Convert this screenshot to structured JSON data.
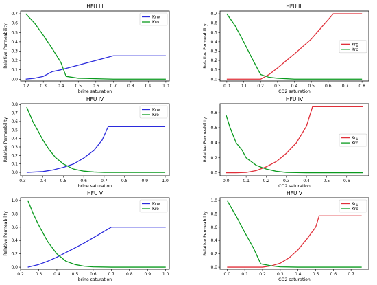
{
  "colors": {
    "blue": "#2b2bdc",
    "green": "#0a9a1e",
    "red": "#e0303a"
  },
  "chart_data": [
    {
      "type": "line",
      "title": "HFU III",
      "xlabel": "brine saturation",
      "ylabel": "Relative Permeability",
      "xlim": [
        0.17,
        1.02
      ],
      "ylim": [
        -0.02,
        0.73
      ],
      "xticks": [
        0.2,
        0.3,
        0.4,
        0.5,
        0.6,
        0.7,
        0.8,
        0.9,
        1.0
      ],
      "xtick_labels": [
        "0.2",
        "0.3",
        "0.4",
        "0.5",
        "0.6",
        "0.7",
        "0.8",
        "0.9",
        "1.0"
      ],
      "yticks": [
        0.0,
        0.1,
        0.2,
        0.3,
        0.4,
        0.5,
        0.6,
        0.7
      ],
      "ytick_labels": [
        "0.0",
        "0.1",
        "0.2",
        "0.3",
        "0.4",
        "0.5",
        "0.6",
        "0.7"
      ],
      "legend": "top-right",
      "series": [
        {
          "name": "Krw",
          "color": "#2b2bdc",
          "points": [
            [
              0.2,
              0.0
            ],
            [
              0.25,
              0.01
            ],
            [
              0.3,
              0.03
            ],
            [
              0.35,
              0.08
            ],
            [
              0.4,
              0.1
            ],
            [
              0.5,
              0.15
            ],
            [
              0.6,
              0.2
            ],
            [
              0.7,
              0.25
            ],
            [
              0.8,
              0.25
            ],
            [
              0.9,
              0.25
            ],
            [
              1.0,
              0.25
            ]
          ]
        },
        {
          "name": "Kro",
          "color": "#0a9a1e",
          "points": [
            [
              0.2,
              0.7
            ],
            [
              0.25,
              0.6
            ],
            [
              0.3,
              0.47
            ],
            [
              0.35,
              0.33
            ],
            [
              0.4,
              0.18
            ],
            [
              0.43,
              0.03
            ],
            [
              0.5,
              0.01
            ],
            [
              0.6,
              0.005
            ],
            [
              0.7,
              0.0
            ],
            [
              0.8,
              0.0
            ],
            [
              0.9,
              0.0
            ],
            [
              1.0,
              0.0
            ]
          ]
        }
      ]
    },
    {
      "type": "line",
      "title": "HFU III",
      "xlabel": "CO2 saturation",
      "ylabel": "Relative Permeability",
      "xlim": [
        -0.04,
        0.84
      ],
      "ylim": [
        -0.02,
        0.73
      ],
      "xticks": [
        0.0,
        0.1,
        0.2,
        0.3,
        0.4,
        0.5,
        0.6,
        0.7,
        0.8
      ],
      "xtick_labels": [
        "0.0",
        "0.1",
        "0.2",
        "0.3",
        "0.4",
        "0.5",
        "0.6",
        "0.7",
        "0.8"
      ],
      "yticks": [
        0.0,
        0.1,
        0.2,
        0.3,
        0.4,
        0.5,
        0.6,
        0.7
      ],
      "ytick_labels": [
        "0.0",
        "0.1",
        "0.2",
        "0.3",
        "0.4",
        "0.5",
        "0.6",
        "0.7"
      ],
      "legend": "center-right",
      "series": [
        {
          "name": "Krg",
          "color": "#e0303a",
          "points": [
            [
              0.0,
              0.0
            ],
            [
              0.1,
              0.0
            ],
            [
              0.2,
              0.0
            ],
            [
              0.25,
              0.05
            ],
            [
              0.3,
              0.12
            ],
            [
              0.4,
              0.27
            ],
            [
              0.5,
              0.43
            ],
            [
              0.63,
              0.7
            ],
            [
              0.7,
              0.7
            ],
            [
              0.8,
              0.7
            ]
          ]
        },
        {
          "name": "Kro",
          "color": "#0a9a1e",
          "points": [
            [
              0.0,
              0.7
            ],
            [
              0.05,
              0.57
            ],
            [
              0.1,
              0.4
            ],
            [
              0.15,
              0.22
            ],
            [
              0.2,
              0.05
            ],
            [
              0.25,
              0.02
            ],
            [
              0.3,
              0.01
            ],
            [
              0.4,
              0.0
            ],
            [
              0.5,
              0.0
            ],
            [
              0.6,
              0.0
            ],
            [
              0.7,
              0.0
            ],
            [
              0.8,
              0.0
            ]
          ]
        }
      ]
    },
    {
      "type": "line",
      "title": "HFU IV",
      "xlabel": "brine saturation",
      "ylabel": "Relative Permeability",
      "xlim": [
        0.29,
        1.02
      ],
      "ylim": [
        -0.04,
        0.81
      ],
      "xticks": [
        0.3,
        0.4,
        0.5,
        0.6,
        0.7,
        0.8,
        0.9,
        1.0
      ],
      "xtick_labels": [
        "0.3",
        "0.4",
        "0.5",
        "0.6",
        "0.7",
        "0.8",
        "0.9",
        "1.0"
      ],
      "yticks": [
        0.0,
        0.1,
        0.2,
        0.3,
        0.4,
        0.5,
        0.6,
        0.7,
        0.8
      ],
      "ytick_labels": [
        "0.0",
        "0.1",
        "0.2",
        "0.3",
        "0.4",
        "0.5",
        "0.6",
        "0.7",
        "0.8"
      ],
      "legend": "top-right",
      "series": [
        {
          "name": "Krw",
          "color": "#2b2bdc",
          "points": [
            [
              0.32,
              0.0
            ],
            [
              0.36,
              0.005
            ],
            [
              0.4,
              0.01
            ],
            [
              0.45,
              0.03
            ],
            [
              0.5,
              0.06
            ],
            [
              0.55,
              0.1
            ],
            [
              0.6,
              0.17
            ],
            [
              0.65,
              0.26
            ],
            [
              0.69,
              0.38
            ],
            [
              0.72,
              0.54
            ],
            [
              0.8,
              0.54
            ],
            [
              0.9,
              0.54
            ],
            [
              1.0,
              0.54
            ]
          ]
        },
        {
          "name": "Kro",
          "color": "#0a9a1e",
          "points": [
            [
              0.32,
              0.77
            ],
            [
              0.35,
              0.6
            ],
            [
              0.38,
              0.47
            ],
            [
              0.4,
              0.38
            ],
            [
              0.43,
              0.27
            ],
            [
              0.46,
              0.18
            ],
            [
              0.5,
              0.1
            ],
            [
              0.55,
              0.04
            ],
            [
              0.6,
              0.015
            ],
            [
              0.65,
              0.005
            ],
            [
              0.7,
              0.0
            ],
            [
              0.8,
              0.0
            ],
            [
              1.0,
              0.0
            ]
          ]
        }
      ]
    },
    {
      "type": "line",
      "title": "HFU IV",
      "xlabel": "CO2 saturation",
      "ylabel": "Relative Permeability",
      "xlim": [
        -0.03,
        0.71
      ],
      "ylim": [
        -0.04,
        0.92
      ],
      "xticks": [
        0.0,
        0.1,
        0.2,
        0.3,
        0.4,
        0.5,
        0.6
      ],
      "xtick_labels": [
        "0.0",
        "0.1",
        "0.2",
        "0.3",
        "0.4",
        "0.5",
        "0.6"
      ],
      "yticks": [
        0.0,
        0.2,
        0.4,
        0.6,
        0.8
      ],
      "ytick_labels": [
        "0.0",
        "0.2",
        "0.4",
        "0.6",
        "0.8"
      ],
      "legend": "center-right",
      "series": [
        {
          "name": "Krg",
          "color": "#e0303a",
          "points": [
            [
              0.0,
              0.0
            ],
            [
              0.05,
              0.0
            ],
            [
              0.1,
              0.005
            ],
            [
              0.15,
              0.03
            ],
            [
              0.2,
              0.08
            ],
            [
              0.25,
              0.15
            ],
            [
              0.3,
              0.26
            ],
            [
              0.35,
              0.4
            ],
            [
              0.4,
              0.62
            ],
            [
              0.43,
              0.88
            ],
            [
              0.5,
              0.88
            ],
            [
              0.6,
              0.88
            ],
            [
              0.68,
              0.88
            ]
          ]
        },
        {
          "name": "Kro",
          "color": "#0a9a1e",
          "points": [
            [
              0.0,
              0.77
            ],
            [
              0.02,
              0.6
            ],
            [
              0.05,
              0.4
            ],
            [
              0.08,
              0.3
            ],
            [
              0.1,
              0.2
            ],
            [
              0.15,
              0.1
            ],
            [
              0.2,
              0.05
            ],
            [
              0.25,
              0.02
            ],
            [
              0.3,
              0.005
            ],
            [
              0.4,
              0.0
            ],
            [
              0.5,
              0.0
            ],
            [
              0.6,
              0.0
            ],
            [
              0.68,
              0.0
            ]
          ]
        }
      ]
    },
    {
      "type": "line",
      "title": "HFU V",
      "xlabel": "brine saturation",
      "ylabel": "Relative Permeability",
      "xlim": [
        0.2,
        1.02
      ],
      "ylim": [
        -0.03,
        1.04
      ],
      "xticks": [
        0.2,
        0.3,
        0.4,
        0.5,
        0.6,
        0.7,
        0.8,
        0.9,
        1.0
      ],
      "xtick_labels": [
        "0.2",
        "0.3",
        "0.4",
        "0.5",
        "0.6",
        "0.7",
        "0.8",
        "0.9",
        "1.0"
      ],
      "yticks": [
        0.0,
        0.2,
        0.4,
        0.6,
        0.8,
        1.0
      ],
      "ytick_labels": [
        "0.0",
        "0.2",
        "0.4",
        "0.6",
        "0.8",
        "1.0"
      ],
      "legend": "top-right",
      "series": [
        {
          "name": "Krw",
          "color": "#2b2bdc",
          "points": [
            [
              0.24,
              0.0
            ],
            [
              0.3,
              0.04
            ],
            [
              0.35,
              0.09
            ],
            [
              0.4,
              0.15
            ],
            [
              0.45,
              0.22
            ],
            [
              0.5,
              0.29
            ],
            [
              0.55,
              0.36
            ],
            [
              0.6,
              0.44
            ],
            [
              0.65,
              0.52
            ],
            [
              0.7,
              0.6
            ],
            [
              0.8,
              0.6
            ],
            [
              0.9,
              0.6
            ],
            [
              1.0,
              0.6
            ]
          ]
        },
        {
          "name": "Kro",
          "color": "#0a9a1e",
          "points": [
            [
              0.24,
              1.0
            ],
            [
              0.27,
              0.8
            ],
            [
              0.3,
              0.63
            ],
            [
              0.35,
              0.38
            ],
            [
              0.4,
              0.2
            ],
            [
              0.45,
              0.09
            ],
            [
              0.5,
              0.04
            ],
            [
              0.55,
              0.015
            ],
            [
              0.6,
              0.005
            ],
            [
              0.7,
              0.0
            ],
            [
              0.8,
              0.0
            ],
            [
              1.0,
              0.0
            ]
          ]
        }
      ]
    },
    {
      "type": "line",
      "title": "HFU V",
      "xlabel": "CO2 saturation",
      "ylabel": "Relative Permeability",
      "xlim": [
        -0.04,
        0.8
      ],
      "ylim": [
        -0.03,
        1.04
      ],
      "xticks": [
        0.0,
        0.1,
        0.2,
        0.3,
        0.4,
        0.5,
        0.6,
        0.7
      ],
      "xtick_labels": [
        "0.0",
        "0.1",
        "0.2",
        "0.3",
        "0.4",
        "0.5",
        "0.6",
        "0.7"
      ],
      "yticks": [
        0.0,
        0.2,
        0.4,
        0.6,
        0.8,
        1.0
      ],
      "ytick_labels": [
        "0.0",
        "0.2",
        "0.4",
        "0.6",
        "0.8",
        "1.0"
      ],
      "legend": "top-right",
      "series": [
        {
          "name": "Krg",
          "color": "#e0303a",
          "points": [
            [
              0.0,
              0.0
            ],
            [
              0.1,
              0.0
            ],
            [
              0.2,
              0.0
            ],
            [
              0.25,
              0.02
            ],
            [
              0.3,
              0.06
            ],
            [
              0.35,
              0.14
            ],
            [
              0.4,
              0.26
            ],
            [
              0.45,
              0.42
            ],
            [
              0.5,
              0.6
            ],
            [
              0.52,
              0.77
            ],
            [
              0.6,
              0.77
            ],
            [
              0.7,
              0.77
            ],
            [
              0.76,
              0.77
            ]
          ]
        },
        {
          "name": "Kro",
          "color": "#0a9a1e",
          "points": [
            [
              0.0,
              1.0
            ],
            [
              0.05,
              0.77
            ],
            [
              0.1,
              0.52
            ],
            [
              0.15,
              0.28
            ],
            [
              0.19,
              0.05
            ],
            [
              0.25,
              0.02
            ],
            [
              0.3,
              0.005
            ],
            [
              0.4,
              0.0
            ],
            [
              0.5,
              0.0
            ],
            [
              0.6,
              0.0
            ],
            [
              0.7,
              0.0
            ],
            [
              0.76,
              0.0
            ]
          ]
        }
      ]
    }
  ]
}
